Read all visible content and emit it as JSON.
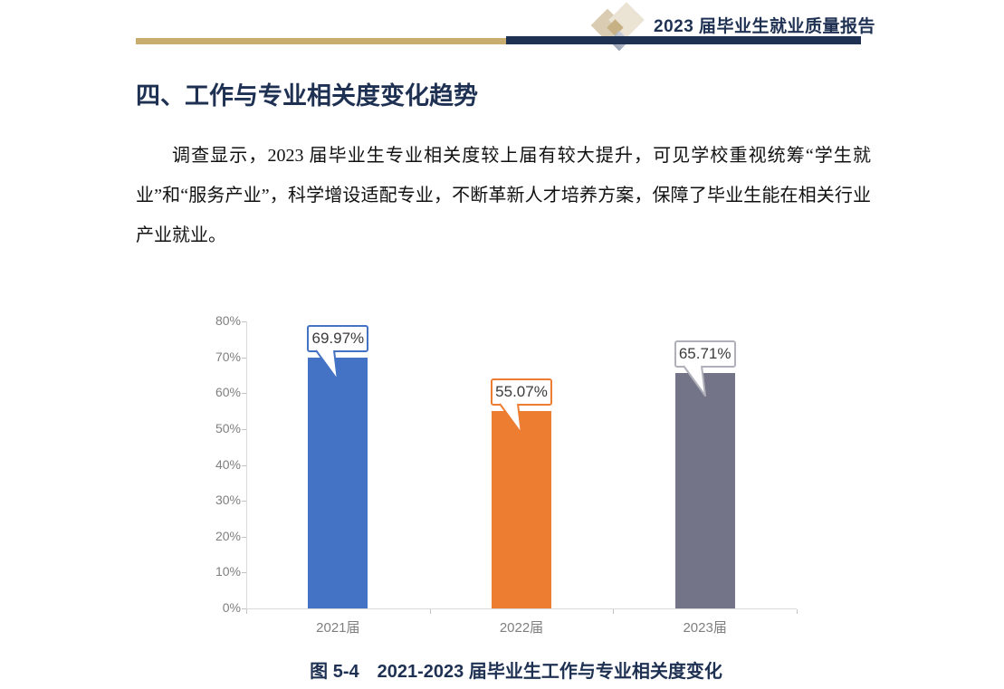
{
  "header": {
    "report_title": "2023 届毕业生就业质量报告",
    "logo": "diamond-cluster",
    "rule_gold_color": "#C9AD6F",
    "rule_navy_color": "#1F3153"
  },
  "section": {
    "heading": "四、工作与专业相关度变化趋势",
    "paragraph": "调查显示，2023 届毕业生专业相关度较上届有较大提升，可见学校重视统筹“学生就业”和“服务产业”，科学增设适配专业，不断革新人才培养方案，保障了毕业生能在相关行业产业就业。"
  },
  "chart_data": {
    "type": "bar",
    "title": "",
    "categories": [
      "2021届",
      "2022届",
      "2023届"
    ],
    "values": [
      69.97,
      55.07,
      65.71
    ],
    "data_labels": [
      "69.97%",
      "55.07%",
      "65.71%"
    ],
    "bar_colors": [
      "#4472C4",
      "#ED7D31",
      "#737487"
    ],
    "callout_border_colors": [
      "#4472C4",
      "#ED7D31",
      "#AFB0B9"
    ],
    "ytick_labels": [
      "0%",
      "10%",
      "20%",
      "30%",
      "40%",
      "50%",
      "60%",
      "70%",
      "80%"
    ],
    "ylim": [
      0,
      80
    ],
    "ytick_step": 10,
    "xlabel": "",
    "ylabel": "",
    "grid": false,
    "legend": "none",
    "axis_color": "#D9D9D9",
    "tick_color": "#C2C2C2",
    "tick_label_color": "#7F7F7F"
  },
  "caption": "图 5-4　2021-2023 届毕业生工作与专业相关度变化"
}
